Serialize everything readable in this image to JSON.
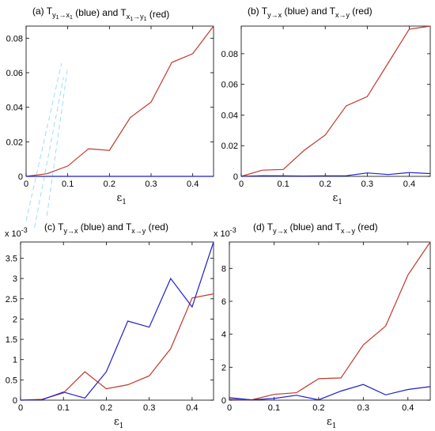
{
  "chart_data": [
    {
      "type": "line",
      "panel": "(a)",
      "title_parts": [
        "(a)  T",
        "y",
        "1",
        "→x",
        "1",
        " (blue)  and  T",
        "x",
        "1",
        "→y",
        "1",
        " (red)"
      ],
      "xlabel": "ε",
      "xlabel_sub": "1",
      "exponent_label": "",
      "xlim": [
        0,
        0.45
      ],
      "ylim": [
        0,
        0.087
      ],
      "xticks": [
        0,
        0.1,
        0.2,
        0.3,
        0.4
      ],
      "xtick_labels": [
        "0",
        "0.1",
        "0.2",
        "0.3",
        "0.4"
      ],
      "yticks": [
        0,
        0.02,
        0.04,
        0.06,
        0.08
      ],
      "ytick_labels": [
        "0",
        "0.02",
        "0.04",
        "0.06",
        "0.08"
      ],
      "x": [
        0,
        0.05,
        0.1,
        0.15,
        0.2,
        0.25,
        0.3,
        0.35,
        0.4,
        0.45
      ],
      "series": [
        {
          "color": "#c0392b",
          "values": [
            0,
            0.0015,
            0.006,
            0.016,
            0.015,
            0.034,
            0.043,
            0.066,
            0.071,
            0.087
          ]
        },
        {
          "color": "#1f1fcc",
          "values": [
            0,
            0,
            0,
            0,
            0,
            0,
            0,
            0,
            0,
            0
          ]
        }
      ],
      "has_watermark": true
    },
    {
      "type": "line",
      "panel": "(b)",
      "title_parts": [
        "(b)  T",
        "y→x",
        "",
        "",
        "",
        " (blue)  and  T",
        "x→y",
        "",
        "",
        "",
        " (red)"
      ],
      "xlabel": "ε",
      "xlabel_sub": "1",
      "exponent_label": "",
      "xlim": [
        0,
        0.45
      ],
      "ylim": [
        0,
        0.098
      ],
      "xticks": [
        0,
        0.1,
        0.2,
        0.3,
        0.4
      ],
      "xtick_labels": [
        "0",
        "0.1",
        "0.2",
        "0.3",
        "0.4"
      ],
      "yticks": [
        0,
        0.02,
        0.04,
        0.06,
        0.08
      ],
      "ytick_labels": [
        "0",
        "0.02",
        "0.04",
        "0.06",
        "0.08"
      ],
      "x": [
        0,
        0.05,
        0.1,
        0.15,
        0.2,
        0.25,
        0.3,
        0.35,
        0.4,
        0.45
      ],
      "series": [
        {
          "color": "#c0392b",
          "values": [
            0,
            0.004,
            0.0045,
            0.017,
            0.027,
            0.046,
            0.052,
            0.074,
            0.096,
            0.098
          ]
        },
        {
          "color": "#1f1fcc",
          "values": [
            0,
            0.0004,
            0.0003,
            0.0002,
            0.0003,
            0.0004,
            0.0022,
            0.0012,
            0.0025,
            0.0018
          ]
        }
      ],
      "has_watermark": false
    },
    {
      "type": "line",
      "panel": "(c)",
      "title_parts": [
        "(c)  T",
        "y→x",
        "",
        "",
        "",
        " (blue)  and  T",
        "x→y",
        "",
        "",
        "",
        " (red)"
      ],
      "xlabel": "ε",
      "xlabel_sub": "1",
      "exponent_label": "x 10",
      "exponent_power": "-3",
      "xlim": [
        0,
        0.45
      ],
      "ylim": [
        0,
        3.9
      ],
      "xticks": [
        0,
        0.1,
        0.2,
        0.3,
        0.4
      ],
      "xtick_labels": [
        "0",
        "0.1",
        "0.2",
        "0.3",
        "0.4"
      ],
      "yticks": [
        0,
        0.5,
        1,
        1.5,
        2,
        2.5,
        3,
        3.5
      ],
      "ytick_labels": [
        "0",
        "0.5",
        "1",
        "1.5",
        "2",
        "2.5",
        "3",
        "3.5"
      ],
      "x": [
        0,
        0.05,
        0.1,
        0.15,
        0.2,
        0.25,
        0.3,
        0.35,
        0.4,
        0.45
      ],
      "series": [
        {
          "color": "#c0392b",
          "values": [
            0,
            0.02,
            0.18,
            0.7,
            0.28,
            0.38,
            0.6,
            1.27,
            2.52,
            2.62
          ]
        },
        {
          "color": "#1f1fcc",
          "values": [
            0,
            0.01,
            0.2,
            0.05,
            0.7,
            1.95,
            1.8,
            3.0,
            2.3,
            3.9
          ]
        }
      ],
      "has_watermark": false
    },
    {
      "type": "line",
      "panel": "(d)",
      "title_parts": [
        "(d)  T",
        "y→x",
        "",
        "",
        "",
        " (blue)  and  T",
        "x→y",
        "",
        "",
        "",
        " (red)"
      ],
      "xlabel": "ε",
      "xlabel_sub": "1",
      "exponent_label": "x 10",
      "exponent_power": "-3",
      "xlim": [
        0,
        0.45
      ],
      "ylim": [
        0,
        9.6
      ],
      "xticks": [
        0,
        0.1,
        0.2,
        0.3,
        0.4
      ],
      "xtick_labels": [
        "0",
        "0.1",
        "0.2",
        "0.3",
        "0.4"
      ],
      "yticks": [
        0,
        2,
        4,
        6,
        8
      ],
      "ytick_labels": [
        "0",
        "2",
        "4",
        "6",
        "8"
      ],
      "x": [
        0,
        0.05,
        0.1,
        0.15,
        0.2,
        0.25,
        0.3,
        0.35,
        0.4,
        0.45
      ],
      "series": [
        {
          "color": "#c0392b",
          "values": [
            0.05,
            0.02,
            0.35,
            0.45,
            1.3,
            1.35,
            3.35,
            4.5,
            7.6,
            9.6
          ]
        },
        {
          "color": "#1f1fcc",
          "values": [
            0.15,
            0.02,
            0.1,
            0.3,
            0.02,
            0.55,
            0.95,
            0.32,
            0.65,
            0.82
          ]
        }
      ],
      "has_watermark": false
    }
  ]
}
